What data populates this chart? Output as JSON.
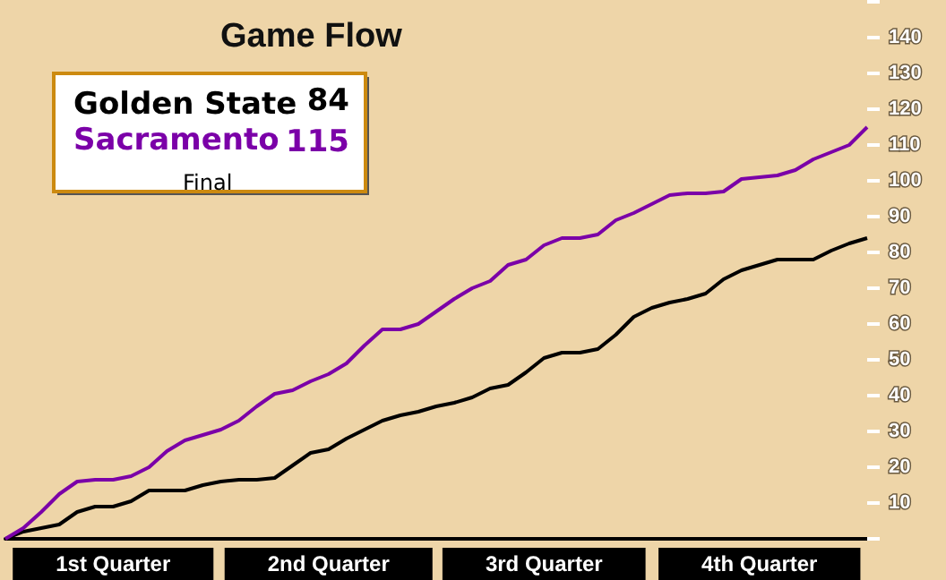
{
  "chart_data": {
    "type": "line",
    "title": "Game Flow",
    "categories": [
      null,
      null,
      null,
      null,
      null,
      null,
      "1st Quarter",
      null,
      null,
      null,
      null,
      null,
      null,
      null,
      null,
      null,
      null,
      null,
      "2nd Quarter",
      null,
      null,
      null,
      null,
      null,
      null,
      null,
      null,
      null,
      null,
      null,
      "3rd Quarter",
      null,
      null,
      null,
      null,
      null,
      null,
      null,
      null,
      null,
      null,
      null,
      "4th Quarter",
      null,
      null,
      null,
      null,
      null,
      null
    ],
    "ylim": [
      0,
      150
    ],
    "yticks": [
      10,
      20,
      30,
      40,
      50,
      60,
      70,
      80,
      90,
      100,
      110,
      120,
      130,
      140
    ],
    "legend": "top left",
    "marker": "none",
    "line_style": "solid",
    "grid": false,
    "annotations": [
      "84",
      "115",
      "Final"
    ],
    "series": [
      {
        "name": "Golden State",
        "color": "#000000",
        "values": [
          0,
          2,
          3,
          4,
          7.5,
          9,
          9,
          10.5,
          13.5,
          13.5,
          13.5,
          15,
          16,
          16.5,
          16.5,
          17,
          20.5,
          24,
          25,
          28,
          30.5,
          33,
          34.5,
          35.5,
          37,
          38,
          39.5,
          42,
          43,
          46.5,
          50.5,
          52,
          52,
          53,
          57,
          62,
          64.5,
          66,
          67,
          68.5,
          72.5,
          75,
          76.5,
          78,
          78,
          78,
          80.5,
          82.5,
          84
        ]
      },
      {
        "name": "Sacramento",
        "color": "#7b00a8",
        "values": [
          0,
          3,
          7.5,
          12.5,
          16,
          16.5,
          16.5,
          17.5,
          20,
          24.5,
          27.5,
          29,
          30.5,
          33,
          37,
          40.5,
          41.5,
          44,
          46,
          49,
          54,
          58.5,
          58.5,
          60,
          63.5,
          67,
          70,
          72,
          76.5,
          78,
          82,
          84,
          84,
          85,
          89,
          91,
          93.5,
          96,
          96.5,
          96.5,
          97,
          100.5,
          101,
          101.5,
          103,
          106,
          108,
          110,
          115
        ]
      }
    ]
  }
}
